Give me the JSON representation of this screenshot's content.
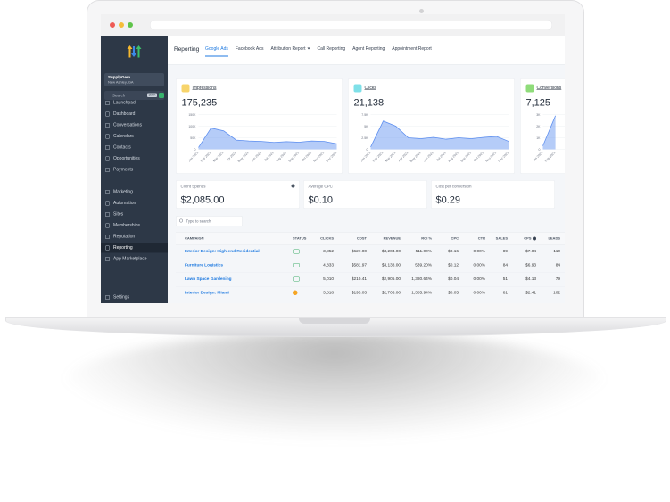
{
  "sidebar": {
    "account": {
      "name": "SupplyGem",
      "location": "New Ashley, GA"
    },
    "search": "Search",
    "shortcut": "ctrl K",
    "nav": [
      [
        "Launchpad",
        "Dashboard",
        "Conversations",
        "Calendars",
        "Contacts",
        "Opportunities",
        "Payments"
      ],
      [
        "Marketing",
        "Automation",
        "Sites",
        "Memberships",
        "Reputation",
        "Reporting",
        "App Marketplace"
      ]
    ],
    "settings": "Settings"
  },
  "header": {
    "title": "Reporting",
    "tabs": [
      "Google Ads",
      "Facebook Ads",
      "Attribution Report",
      "Call Reporting",
      "Agent Reporting",
      "Appointment Report"
    ]
  },
  "chart_data": [
    {
      "type": "area",
      "title": "Impressions",
      "summary": "175,235",
      "color": "#5b8def",
      "categories": [
        "Jan 2021",
        "Feb 2021",
        "Mar 2021",
        "Apr 2021",
        "May 2021",
        "Jun 2021",
        "Jul 2021",
        "Aug 2021",
        "Sep 2021",
        "Oct 2021",
        "Nov 2021",
        "Dec 2021"
      ],
      "values": [
        8000,
        92000,
        80000,
        40000,
        36000,
        34000,
        30000,
        33000,
        31000,
        36000,
        34000,
        24000
      ],
      "ylim": [
        0,
        150000
      ],
      "yticks": [
        0,
        {
          "value": 50000,
          "label": "50K"
        },
        {
          "value": 100000,
          "label": "100K"
        },
        {
          "value": 150000,
          "label": "150K"
        }
      ]
    },
    {
      "type": "area",
      "title": "Clicks",
      "summary": "21,138",
      "color": "#5b8def",
      "categories": [
        "Jan 2021",
        "Feb 2021",
        "Mar 2021",
        "Apr 2021",
        "May 2021",
        "Jun 2021",
        "Jul 2021",
        "Aug 2021",
        "Sep 2021",
        "Oct 2021",
        "Nov 2021",
        "Dec 2021"
      ],
      "values": [
        500,
        6100,
        5000,
        2500,
        2300,
        2600,
        2200,
        2500,
        2300,
        2600,
        2800,
        1700
      ],
      "ylim": [
        0,
        7500
      ],
      "yticks": [
        0,
        {
          "value": 2500,
          "label": "2.5K"
        },
        {
          "value": 5000,
          "label": "5K"
        },
        {
          "value": 7500,
          "label": "7.5K"
        }
      ]
    },
    {
      "type": "area",
      "title": "Conversions",
      "summary": "7,125",
      "color": "#5b8def",
      "categories": [
        "Jan 2021",
        "Feb 2021"
      ],
      "values": [
        300,
        2900
      ],
      "ylim": [
        0,
        3000
      ],
      "yticks": [
        0,
        {
          "value": 1000,
          "label": "1K"
        },
        {
          "value": 2000,
          "label": "2K"
        },
        {
          "value": 3000,
          "label": "3K"
        }
      ]
    }
  ],
  "stats": [
    {
      "label": "Client Spends",
      "value": "$2,085.00"
    },
    {
      "label": "Average CPC",
      "value": "$0.10"
    },
    {
      "label": "Cost per conversion",
      "value": "$0.29"
    }
  ],
  "table": {
    "search_placeholder": "Type to search",
    "columns": [
      "CAMPAIGN",
      "STATUS",
      "CLICKS",
      "COST",
      "REVENUE",
      "ROI %",
      "CPC",
      "CTR",
      "SALES",
      "CPS",
      "LEADS"
    ],
    "rows": [
      [
        "Interior Design: High-end Residential",
        "3,852",
        "$627.00",
        "$3,204.00",
        "511.00%",
        "$0.16",
        "0.00%",
        "89",
        "$7.04",
        "110"
      ],
      [
        "Furniture Logistics",
        "4,833",
        "$581.97",
        "$3,138.00",
        "539.20%",
        "$0.12",
        "0.00%",
        "84",
        "$6.93",
        "84"
      ],
      [
        "Lawn Space Gardening",
        "5,010",
        "$210.41",
        "$2,905.00",
        "1,380.64%",
        "$0.04",
        "0.00%",
        "51",
        "$4.13",
        "79"
      ],
      [
        "Interior Design: Miami",
        "3,818",
        "$195.03",
        "$2,703.00",
        "1,385.94%",
        "$0.05",
        "0.00%",
        "81",
        "$2.41",
        "102"
      ]
    ]
  }
}
